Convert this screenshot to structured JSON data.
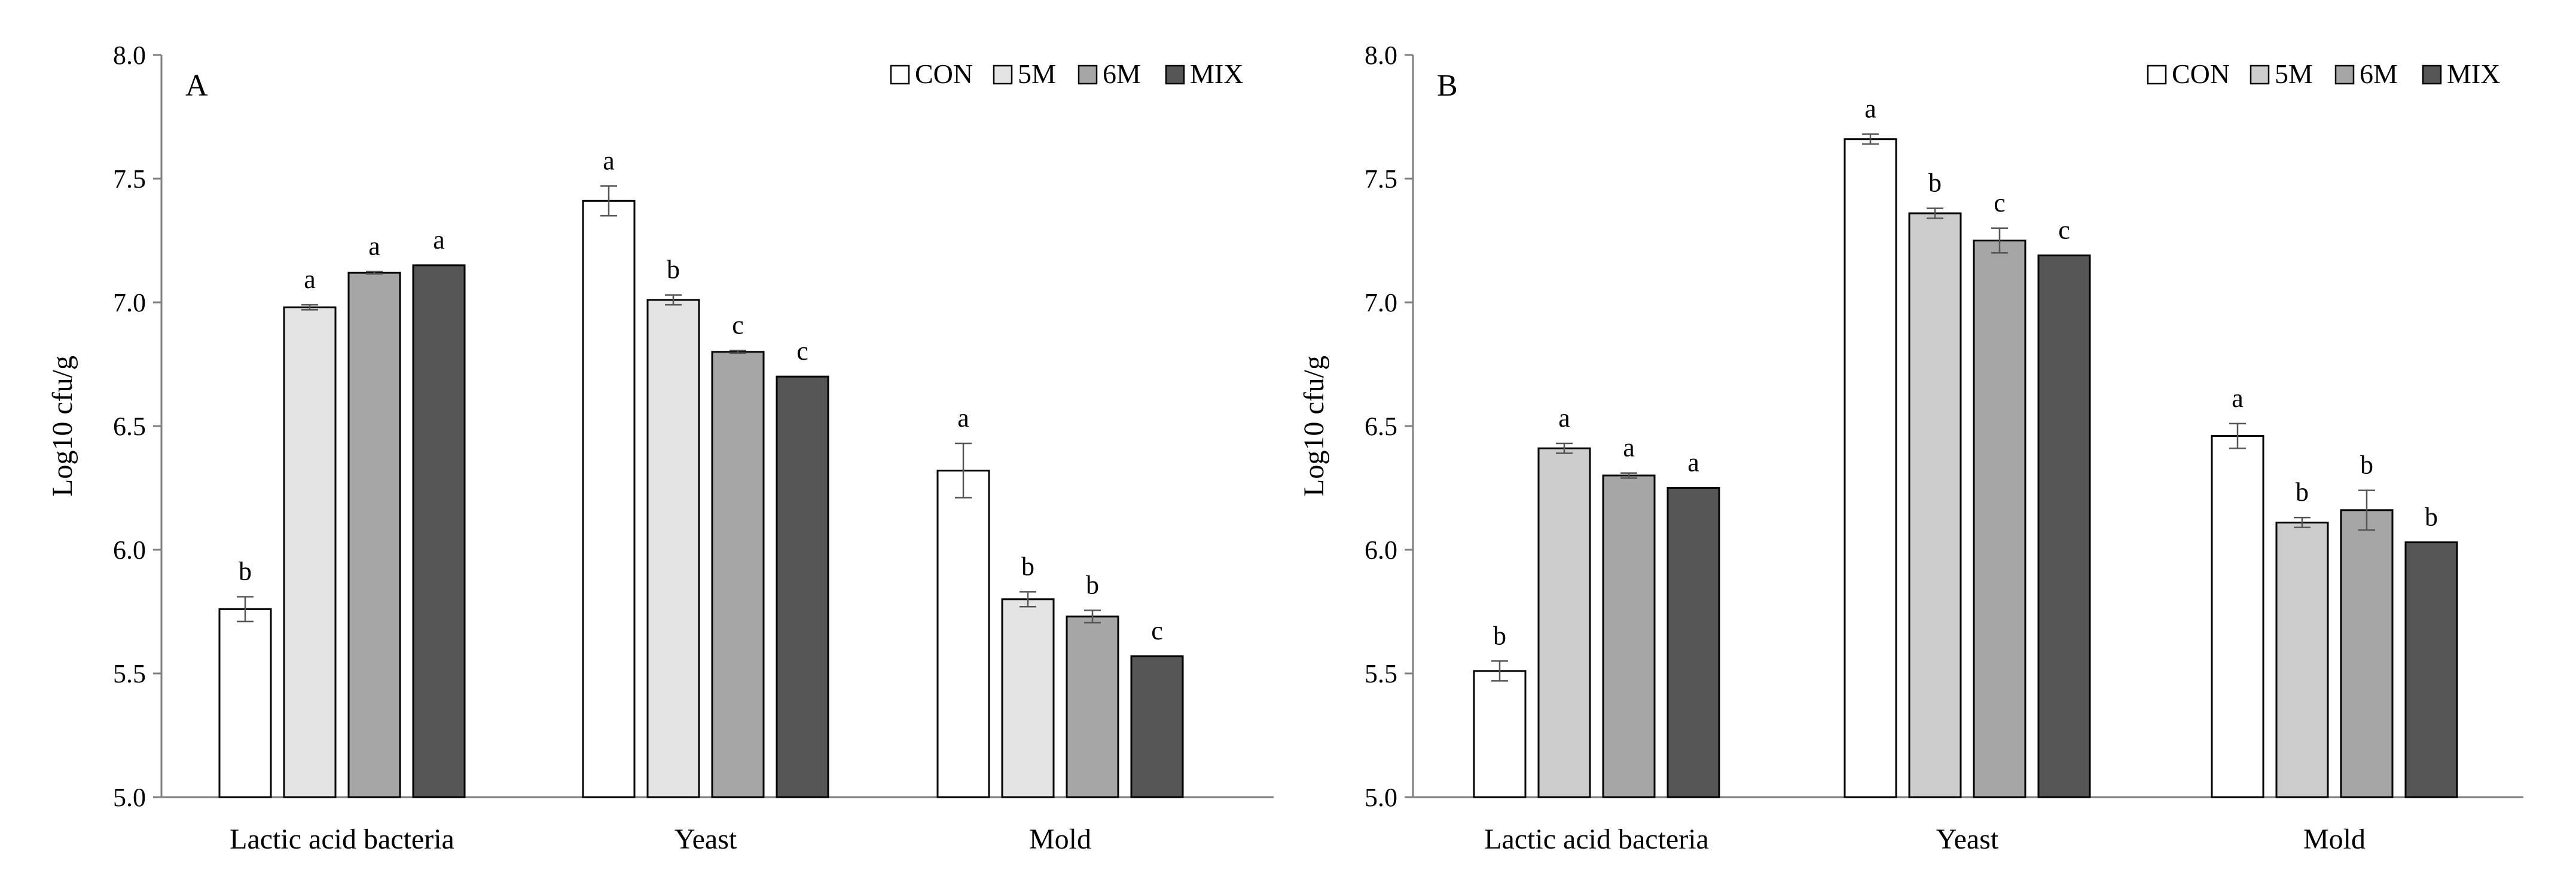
{
  "legend": [
    {
      "name": "CON",
      "color": "#ffffff"
    },
    {
      "name": "5M",
      "color": "#e4e4e4"
    },
    {
      "name": "6M",
      "color": "#a6a6a6"
    },
    {
      "name": "MIX",
      "color": "#565656"
    }
  ],
  "chart_data": [
    {
      "type": "bar",
      "panel_label": "A",
      "ylabel": "Log10 cfu/g",
      "ylim": [
        5.0,
        8.0
      ],
      "yticks": [
        "5.0",
        "5.5",
        "6.0",
        "6.5",
        "7.0",
        "7.5",
        "8.0"
      ],
      "grid": false,
      "legend_position": "top-right",
      "categories": [
        "Lactic acid bacteria",
        "Yeast",
        "Mold"
      ],
      "series": [
        {
          "name": "CON",
          "color": "#ffffff",
          "values": [
            5.76,
            7.41,
            6.32
          ],
          "errors": [
            0.05,
            0.06,
            0.11
          ],
          "letters": [
            "b",
            "a",
            "a"
          ]
        },
        {
          "name": "5M",
          "color": "#e4e4e4",
          "values": [
            6.98,
            7.01,
            5.8
          ],
          "errors": [
            0.01,
            0.02,
            0.03
          ],
          "letters": [
            "a",
            "b",
            "b"
          ]
        },
        {
          "name": "6M",
          "color": "#a6a6a6",
          "values": [
            7.12,
            6.8,
            5.73
          ],
          "errors": [
            0.005,
            0.005,
            0.025
          ],
          "letters": [
            "a",
            "c",
            "b"
          ]
        },
        {
          "name": "MIX",
          "color": "#565656",
          "values": [
            7.15,
            6.7,
            5.57
          ],
          "errors": [
            0,
            0,
            0
          ],
          "letters": [
            "a",
            "c",
            "c"
          ]
        }
      ]
    },
    {
      "type": "bar",
      "panel_label": "B",
      "ylabel": "Log10 cfu/g",
      "ylim": [
        5.0,
        8.0
      ],
      "yticks": [
        "5.0",
        "5.5",
        "6.0",
        "6.5",
        "7.0",
        "7.5",
        "8.0"
      ],
      "grid": false,
      "legend_position": "top-right",
      "categories": [
        "Lactic acid bacteria",
        "Yeast",
        "Mold"
      ],
      "series": [
        {
          "name": "CON",
          "color": "#ffffff",
          "values": [
            5.51,
            7.66,
            6.46
          ],
          "errors": [
            0.04,
            0.02,
            0.05
          ],
          "letters": [
            "b",
            "a",
            "a"
          ]
        },
        {
          "name": "5M",
          "color": "#cccccc",
          "values": [
            6.41,
            7.36,
            6.11
          ],
          "errors": [
            0.02,
            0.02,
            0.02
          ],
          "letters": [
            "a",
            "b",
            "b"
          ]
        },
        {
          "name": "6M",
          "color": "#a6a6a6",
          "values": [
            6.3,
            7.25,
            6.16
          ],
          "errors": [
            0.01,
            0.05,
            0.08
          ],
          "letters": [
            "a",
            "c",
            "b"
          ]
        },
        {
          "name": "MIX",
          "color": "#565656",
          "values": [
            6.25,
            7.19,
            6.03
          ],
          "errors": [
            0,
            0,
            0
          ],
          "letters": [
            "a",
            "c",
            "b"
          ]
        }
      ]
    }
  ]
}
